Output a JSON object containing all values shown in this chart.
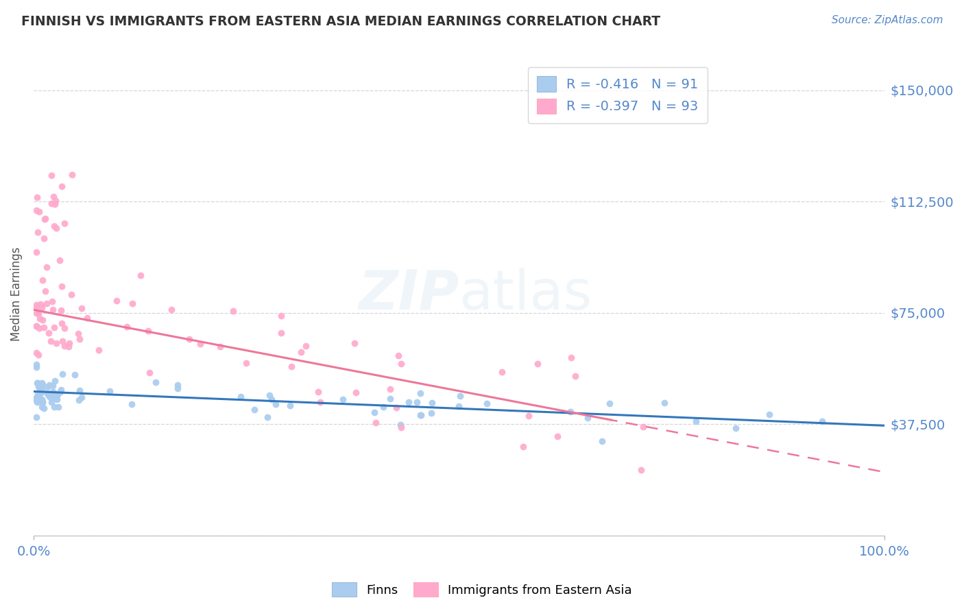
{
  "title": "FINNISH VS IMMIGRANTS FROM EASTERN ASIA MEDIAN EARNINGS CORRELATION CHART",
  "source": "Source: ZipAtlas.com",
  "ylabel": "Median Earnings",
  "xlim": [
    0.0,
    1.0
  ],
  "ylim": [
    0,
    162500
  ],
  "yticks": [
    0,
    37500,
    75000,
    112500,
    150000
  ],
  "ytick_labels": [
    "",
    "$37,500",
    "$75,000",
    "$112,500",
    "$150,000"
  ],
  "xtick_labels": [
    "0.0%",
    "100.0%"
  ],
  "background_color": "#ffffff",
  "grid_color": "#cccccc",
  "finns_color": "#aaccee",
  "immigrants_color": "#ffaacc",
  "finns_line_color": "#3377bb",
  "immigrants_line_color": "#ee7799",
  "finns_R": -0.416,
  "finns_N": 91,
  "immigrants_R": -0.397,
  "immigrants_N": 93,
  "title_color": "#333333",
  "axis_color": "#5588cc",
  "legend_label_finns": "Finns",
  "legend_label_immigrants": "Immigrants from Eastern Asia",
  "watermark_color": "#ccddeebb"
}
